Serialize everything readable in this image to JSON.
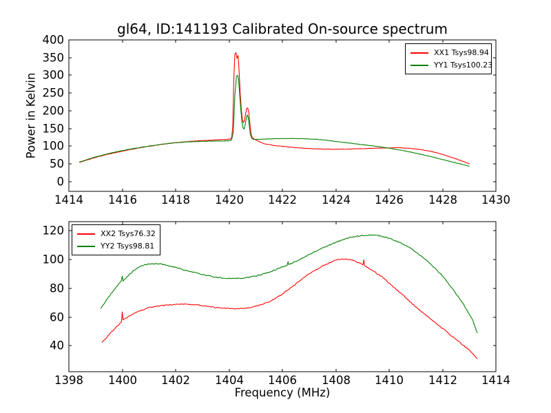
{
  "figure": {
    "title": "gl64, ID:141193 Calibrated On-source spectrum",
    "background": "#ffffff",
    "frame_color": "#000000",
    "text_color": "#000000"
  },
  "chart_data": [
    {
      "type": "line",
      "subplot": "top",
      "ylabel": "Power in Kelvin",
      "xlim": [
        1414,
        1430
      ],
      "ylim": [
        -28,
        400
      ],
      "xticks": [
        1414,
        1416,
        1418,
        1420,
        1422,
        1424,
        1426,
        1428,
        1430
      ],
      "yticks": [
        0,
        50,
        100,
        150,
        200,
        250,
        300,
        350,
        400
      ],
      "grid": false,
      "legend_position": "upper-right",
      "series": [
        {
          "name": "XX1 Tsys98.94",
          "tsys": 98.94,
          "color": "#ff0000",
          "noise": 1.0,
          "points": [
            [
              1414.4,
              54
            ],
            [
              1414.7,
              61
            ],
            [
              1415,
              68
            ],
            [
              1415.5,
              77.5
            ],
            [
              1416,
              85.5
            ],
            [
              1416.5,
              93
            ],
            [
              1417,
              99.5
            ],
            [
              1417.5,
              105
            ],
            [
              1418,
              109.5
            ],
            [
              1418.5,
              113
            ],
            [
              1419,
              115.5
            ],
            [
              1419.5,
              117.5
            ],
            [
              1419.9,
              118.5
            ],
            [
              1420.05,
              119.5
            ],
            [
              1420.1,
              124
            ],
            [
              1420.14,
              155
            ],
            [
              1420.18,
              290
            ],
            [
              1420.22,
              360
            ],
            [
              1420.26,
              364
            ],
            [
              1420.3,
              348
            ],
            [
              1420.34,
              356
            ],
            [
              1420.38,
              310
            ],
            [
              1420.42,
              248
            ],
            [
              1420.46,
              205
            ],
            [
              1420.5,
              175
            ],
            [
              1420.54,
              166
            ],
            [
              1420.58,
              172
            ],
            [
              1420.62,
              190
            ],
            [
              1420.66,
              206
            ],
            [
              1420.7,
              208
            ],
            [
              1420.74,
              196
            ],
            [
              1420.78,
              165
            ],
            [
              1420.82,
              138
            ],
            [
              1420.86,
              126
            ],
            [
              1420.92,
              121
            ],
            [
              1421,
              117.5
            ],
            [
              1421.3,
              107
            ],
            [
              1421.6,
              103
            ],
            [
              1422,
              99
            ],
            [
              1422.5,
              95.5
            ],
            [
              1423,
              93
            ],
            [
              1423.5,
              91.5
            ],
            [
              1424,
              91
            ],
            [
              1424.5,
              91.5
            ],
            [
              1425,
              92.5
            ],
            [
              1425.5,
              94
            ],
            [
              1426,
              95
            ],
            [
              1426.4,
              95.3
            ],
            [
              1426.8,
              93.5
            ],
            [
              1427.2,
              90
            ],
            [
              1427.6,
              84.5
            ],
            [
              1428,
              76.5
            ],
            [
              1428.4,
              66.5
            ],
            [
              1428.7,
              58.5
            ],
            [
              1429,
              50
            ]
          ]
        },
        {
          "name": "YY1 Tsys100.23",
          "tsys": 100.23,
          "color": "#008000",
          "noise": 1.0,
          "points": [
            [
              1414.4,
              55
            ],
            [
              1414.7,
              62.5
            ],
            [
              1415,
              69.5
            ],
            [
              1415.5,
              79
            ],
            [
              1416,
              87
            ],
            [
              1416.5,
              94
            ],
            [
              1417,
              100
            ],
            [
              1417.5,
              105.5
            ],
            [
              1418,
              109.5
            ],
            [
              1418.5,
              112
            ],
            [
              1419,
              113.5
            ],
            [
              1419.5,
              114
            ],
            [
              1419.9,
              114.5
            ],
            [
              1420.05,
              115.5
            ],
            [
              1420.1,
              118
            ],
            [
              1420.16,
              140
            ],
            [
              1420.22,
              245
            ],
            [
              1420.28,
              297
            ],
            [
              1420.32,
              300
            ],
            [
              1420.36,
              288
            ],
            [
              1420.4,
              245
            ],
            [
              1420.44,
              205
            ],
            [
              1420.48,
              172
            ],
            [
              1420.52,
              152
            ],
            [
              1420.56,
              148
            ],
            [
              1420.6,
              158
            ],
            [
              1420.64,
              175
            ],
            [
              1420.68,
              188
            ],
            [
              1420.72,
              182
            ],
            [
              1420.76,
              158
            ],
            [
              1420.8,
              132
            ],
            [
              1420.85,
              122
            ],
            [
              1420.9,
              119
            ],
            [
              1421,
              118.5
            ],
            [
              1421.4,
              120
            ],
            [
              1421.8,
              121
            ],
            [
              1422.3,
              121.5
            ],
            [
              1422.8,
              121
            ],
            [
              1423.2,
              119.5
            ],
            [
              1423.6,
              117
            ],
            [
              1424,
              113
            ],
            [
              1424.5,
              108.5
            ],
            [
              1425,
              104
            ],
            [
              1425.5,
              99.5
            ],
            [
              1426,
              94
            ],
            [
              1426.5,
              87.5
            ],
            [
              1427,
              80
            ],
            [
              1427.5,
              71.5
            ],
            [
              1428,
              62
            ],
            [
              1428.5,
              52.5
            ],
            [
              1429,
              43.5
            ]
          ]
        }
      ]
    },
    {
      "type": "line",
      "subplot": "bottom",
      "xlabel": "Frequency (MHz)",
      "xlim": [
        1398,
        1414
      ],
      "ylim": [
        21.9,
        126.4
      ],
      "xticks": [
        1398,
        1400,
        1402,
        1404,
        1406,
        1408,
        1410,
        1412,
        1414
      ],
      "yticks": [
        40,
        60,
        80,
        100,
        120
      ],
      "grid": false,
      "legend_position": "upper-left",
      "series": [
        {
          "name": "XX2 Tsys76.32",
          "tsys": 76.32,
          "color": "#ff0000",
          "noise": 0.7,
          "points": [
            [
              1399.25,
              42.5
            ],
            [
              1399.5,
              47.5
            ],
            [
              1399.75,
              52.5
            ],
            [
              1399.97,
              56.5
            ],
            [
              1400,
              63.5
            ],
            [
              1400.03,
              58
            ],
            [
              1400.3,
              61
            ],
            [
              1400.6,
              64
            ],
            [
              1401,
              66.5
            ],
            [
              1401.5,
              68
            ],
            [
              1402,
              68.8
            ],
            [
              1402.4,
              69
            ],
            [
              1402.8,
              68.4
            ],
            [
              1403.2,
              67.4
            ],
            [
              1403.6,
              66.5
            ],
            [
              1404,
              66
            ],
            [
              1404.4,
              65.8
            ],
            [
              1404.8,
              66.6
            ],
            [
              1405.2,
              68.5
            ],
            [
              1405.6,
              71.5
            ],
            [
              1406,
              76
            ],
            [
              1406.5,
              83
            ],
            [
              1407,
              90
            ],
            [
              1407.5,
              95.5
            ],
            [
              1408,
              99.5
            ],
            [
              1408.25,
              100.4
            ],
            [
              1408.6,
              99.6
            ],
            [
              1408.9,
              97.5
            ],
            [
              1409.02,
              96.2
            ],
            [
              1409.05,
              99.8
            ],
            [
              1409.08,
              95.8
            ],
            [
              1409.4,
              92
            ],
            [
              1409.7,
              88.5
            ],
            [
              1410,
              83.5
            ],
            [
              1410.5,
              75.5
            ],
            [
              1411,
              67
            ],
            [
              1411.5,
              59.5
            ],
            [
              1412,
              52
            ],
            [
              1412.5,
              44.5
            ],
            [
              1413,
              37
            ],
            [
              1413.3,
              31
            ]
          ]
        },
        {
          "name": "YY2 Tsys98.81",
          "tsys": 98.81,
          "color": "#008000",
          "noise": 0.7,
          "points": [
            [
              1399.2,
              66
            ],
            [
              1399.45,
              73
            ],
            [
              1399.7,
              79
            ],
            [
              1399.97,
              85.5
            ],
            [
              1400,
              88.5
            ],
            [
              1400.03,
              85
            ],
            [
              1400.1,
              86.5
            ],
            [
              1400.4,
              92
            ],
            [
              1400.7,
              95.5
            ],
            [
              1401,
              97
            ],
            [
              1401.4,
              97
            ],
            [
              1401.8,
              95.5
            ],
            [
              1402.2,
              93.5
            ],
            [
              1402.6,
              91.5
            ],
            [
              1403,
              89.5
            ],
            [
              1403.4,
              88
            ],
            [
              1403.8,
              87
            ],
            [
              1404.2,
              86.8
            ],
            [
              1404.6,
              87.2
            ],
            [
              1405,
              88.5
            ],
            [
              1405.5,
              91
            ],
            [
              1406,
              95
            ],
            [
              1406.18,
              96
            ],
            [
              1406.21,
              98.5
            ],
            [
              1406.24,
              96.5
            ],
            [
              1406.6,
              99.5
            ],
            [
              1407,
              103.5
            ],
            [
              1407.5,
              108
            ],
            [
              1408,
              112
            ],
            [
              1408.5,
              115.3
            ],
            [
              1409,
              116.8
            ],
            [
              1409.35,
              117.2
            ],
            [
              1409.7,
              116.3
            ],
            [
              1410,
              114.8
            ],
            [
              1410.4,
              112
            ],
            [
              1410.8,
              108
            ],
            [
              1411.2,
              102.5
            ],
            [
              1411.6,
              96
            ],
            [
              1412,
              88.5
            ],
            [
              1412.4,
              79
            ],
            [
              1412.8,
              68.5
            ],
            [
              1413,
              62
            ],
            [
              1413.15,
              57
            ],
            [
              1413.3,
              49
            ]
          ]
        }
      ]
    }
  ]
}
